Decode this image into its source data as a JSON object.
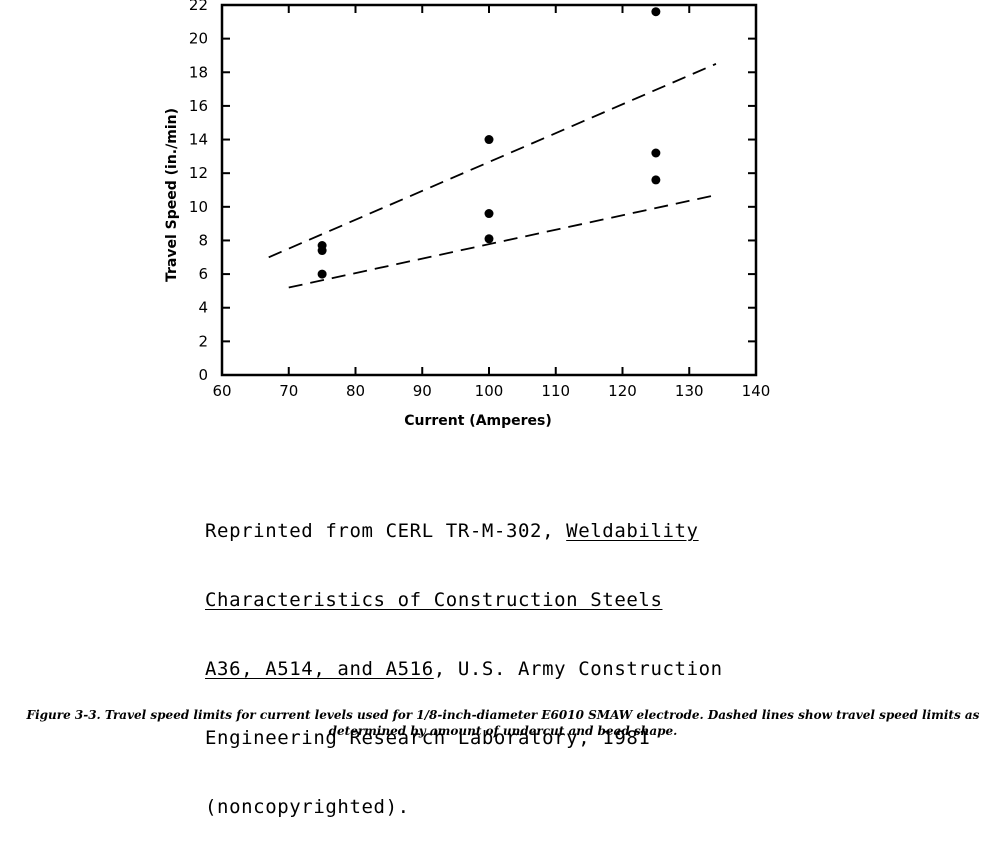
{
  "chart_data": {
    "type": "scatter",
    "xlabel": "Current (Amperes)",
    "ylabel": "Travel Speed (in./min)",
    "xlim": [
      60,
      140
    ],
    "ylim": [
      0,
      22
    ],
    "xticks": [
      "60",
      "70",
      "80",
      "90",
      "100",
      "110",
      "120",
      "130",
      "140"
    ],
    "yticks": [
      "0",
      "2",
      "4",
      "6",
      "8",
      "10",
      "12",
      "14",
      "16",
      "18",
      "20",
      "22"
    ],
    "grid": false,
    "points": [
      {
        "x": 75,
        "y": 7.7
      },
      {
        "x": 75,
        "y": 7.4
      },
      {
        "x": 75,
        "y": 6.0
      },
      {
        "x": 100,
        "y": 14.0
      },
      {
        "x": 100,
        "y": 9.6
      },
      {
        "x": 100,
        "y": 8.1
      },
      {
        "x": 125,
        "y": 21.6
      },
      {
        "x": 125,
        "y": 13.2
      },
      {
        "x": 125,
        "y": 11.6
      }
    ],
    "lines": [
      {
        "style": "dashed",
        "points": [
          {
            "x": 67,
            "y": 7.0
          },
          {
            "x": 134,
            "y": 18.5
          }
        ]
      },
      {
        "style": "dashed",
        "points": [
          {
            "x": 70,
            "y": 5.2
          },
          {
            "x": 134,
            "y": 10.7
          }
        ]
      }
    ]
  },
  "reprint": {
    "line1_plain": "Reprinted from CERL TR-M-302, ",
    "line1_ul": "Weldability",
    "line2_ul": "Characteristics of Construction Steels",
    "line3_ul": "A36, A514, and A516",
    "line3_plain": ", U.S. Army Construction",
    "line4": "Engineering Research Laboratory, 1981",
    "line5": "(noncopyrighted)."
  },
  "caption": {
    "line1": "Figure 3-3. Travel speed limits for current levels used for 1/8-inch-diameter E6010 SMAW electrode. Dashed lines show travel speed limits as",
    "line2": "determined by amount of undercut and bead shape."
  }
}
